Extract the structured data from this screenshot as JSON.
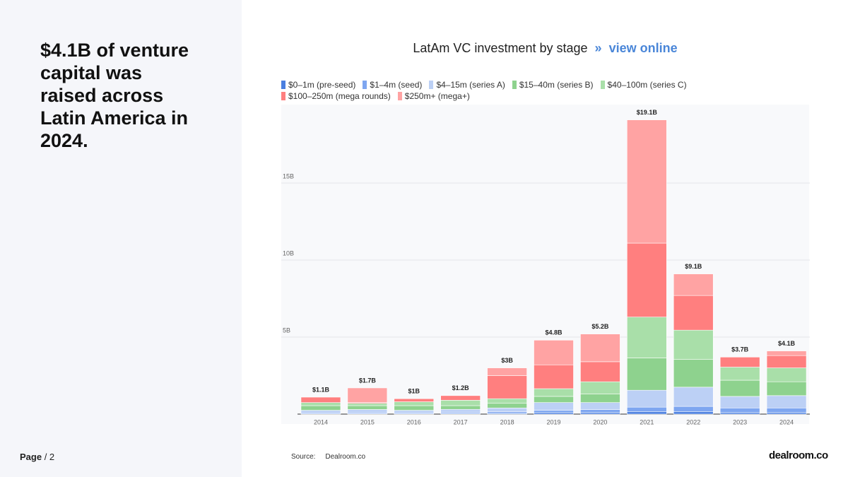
{
  "headline": "$4.1B of venture capital was raised across Latin America in 2024.",
  "footer": {
    "page_label": "Page",
    "page_number": "/ 2",
    "source_label": "Source:",
    "source": "Dealroom.co",
    "logo": "dealroom.co"
  },
  "chart_data": {
    "type": "stacked_bar",
    "title": "LatAm VC investment by stage",
    "separator": "»",
    "link": "view online",
    "categories": [
      "2014",
      "2015",
      "2016",
      "2017",
      "2018",
      "2019",
      "2020",
      "2021",
      "2022",
      "2023",
      "2024"
    ],
    "series": [
      {
        "name": "$0–1m (pre-seed)",
        "color": "#4a7fe0",
        "values": [
          0.03,
          0.03,
          0.03,
          0.03,
          0.05,
          0.1,
          0.1,
          0.15,
          0.15,
          0.1,
          0.1
        ]
      },
      {
        "name": "$1–4m (seed)",
        "color": "#7ea6f0",
        "values": [
          0.07,
          0.07,
          0.07,
          0.08,
          0.1,
          0.15,
          0.2,
          0.3,
          0.35,
          0.3,
          0.3
        ]
      },
      {
        "name": "$4–15m (series A)",
        "color": "#bcd0f5",
        "values": [
          0.15,
          0.2,
          0.15,
          0.2,
          0.25,
          0.5,
          0.45,
          1.1,
          1.25,
          0.75,
          0.8
        ]
      },
      {
        "name": "$15–40m (series B)",
        "color": "#8ed28e",
        "values": [
          0.3,
          0.25,
          0.3,
          0.24,
          0.3,
          0.4,
          0.55,
          2.1,
          1.8,
          1.05,
          0.9
        ]
      },
      {
        "name": "$40–100m (series C)",
        "color": "#a9dfa9",
        "values": [
          0.2,
          0.15,
          0.25,
          0.35,
          0.3,
          0.5,
          0.8,
          2.65,
          1.9,
          0.85,
          0.9
        ]
      },
      {
        "name": "$100–250m (mega rounds)",
        "color": "#ff7f7f",
        "values": [
          0.35,
          0.05,
          0.2,
          0.3,
          1.5,
          1.55,
          1.3,
          4.8,
          2.25,
          0.65,
          0.8
        ]
      },
      {
        "name": "$250m+ (mega+)",
        "color": "#ffa3a3",
        "values": [
          0,
          0.95,
          0,
          0,
          0.5,
          1.6,
          1.8,
          8.0,
          1.4,
          0,
          0.3
        ]
      }
    ],
    "totals": {
      "values": [
        1.1,
        1.7,
        1.0,
        1.2,
        3.0,
        4.8,
        5.2,
        19.1,
        9.1,
        3.7,
        4.1
      ],
      "value_labels": [
        "$1.1B",
        "$1.7B",
        "$1B",
        "$1.2B",
        "$3B",
        "$4.8B",
        "$5.2B",
        "$19.1B",
        "$9.1B",
        "$3.7B",
        "$4.1B"
      ]
    },
    "ylim": [
      0,
      20
    ],
    "yticks": [
      {
        "value": 5,
        "label": "5B"
      },
      {
        "value": 10,
        "label": "10B"
      },
      {
        "value": 15,
        "label": "15B"
      }
    ],
    "grid": true
  }
}
